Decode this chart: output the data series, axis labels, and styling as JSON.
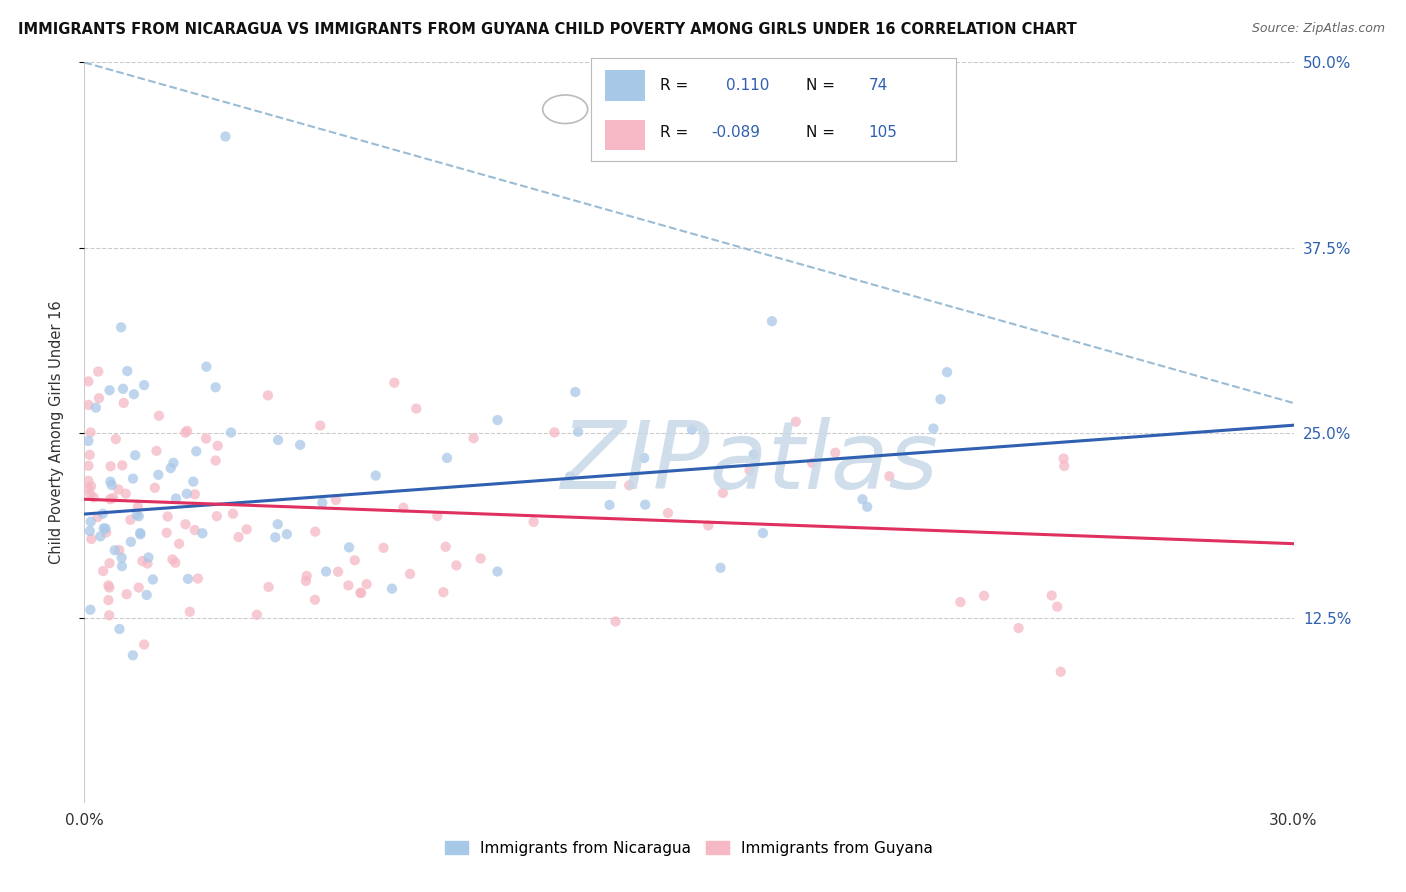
{
  "title": "IMMIGRANTS FROM NICARAGUA VS IMMIGRANTS FROM GUYANA CHILD POVERTY AMONG GIRLS UNDER 16 CORRELATION CHART",
  "source": "Source: ZipAtlas.com",
  "ylabel_label": "Child Poverty Among Girls Under 16",
  "legend_row1": {
    "R": "0.110",
    "N": "74"
  },
  "legend_row2": {
    "R": "-0.089",
    "N": "105"
  },
  "xmin": 0.0,
  "xmax": 30.0,
  "ymin": 0.0,
  "ymax": 50.0,
  "yticks": [
    12.5,
    25.0,
    37.5,
    50.0
  ],
  "ytick_labels": [
    "12.5%",
    "25.0%",
    "37.5%",
    "50.0%"
  ],
  "xtick_labels": [
    "0.0%",
    "30.0%"
  ],
  "background_color": "#ffffff",
  "grid_color": "#cccccc",
  "scatter_alpha": 0.75,
  "scatter_size": 55,
  "nicaragua_color": "#a8c8e8",
  "guyana_color": "#f5b8c4",
  "trend_nicaragua_color": "#3060b0",
  "trend_guyana_color": "#e03060",
  "dashed_color": "#9abcd4",
  "watermark_text": "ZIPatlas",
  "watermark_color": "#c8d8e8",
  "right_tick_color": "#3060b0",
  "bottom_legend_labels": [
    "Immigrants from Nicaragua",
    "Immigrants from Guyana"
  ],
  "nic_trend_x0": 0.0,
  "nic_trend_y0": 19.5,
  "nic_trend_x1": 30.0,
  "nic_trend_y1": 25.5,
  "guy_trend_x0": 0.0,
  "guy_trend_y0": 20.5,
  "guy_trend_x1": 30.0,
  "guy_trend_y1": 17.5,
  "dash_x0": 0.0,
  "dash_y0": 50.0,
  "dash_x1": 30.0,
  "dash_y1": 27.0
}
